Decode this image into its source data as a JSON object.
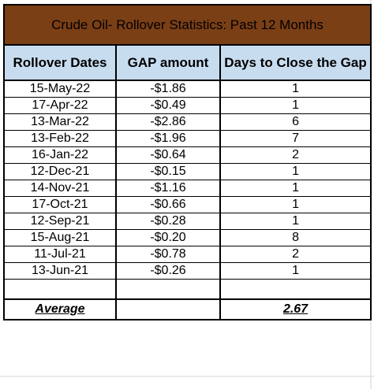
{
  "title": "Crude Oil- Rollover Statistics: Past 12 Months",
  "headers": [
    "Rollover Dates",
    "GAP amount",
    "Days to Close the Gap"
  ],
  "rows": [
    {
      "date": "15-May-22",
      "gap": "-$1.86",
      "days": "1"
    },
    {
      "date": "17-Apr-22",
      "gap": "-$0.49",
      "days": "1"
    },
    {
      "date": "13-Mar-22",
      "gap": "-$2.86",
      "days": "6"
    },
    {
      "date": "13-Feb-22",
      "gap": "-$1.96",
      "days": "7"
    },
    {
      "date": "16-Jan-22",
      "gap": "-$0.64",
      "days": "2"
    },
    {
      "date": "12-Dec-21",
      "gap": "-$0.15",
      "days": "1"
    },
    {
      "date": "14-Nov-21",
      "gap": "-$1.16",
      "days": "1"
    },
    {
      "date": "17-Oct-21",
      "gap": "-$0.66",
      "days": "1"
    },
    {
      "date": "12-Sep-21",
      "gap": "-$0.28",
      "days": "1"
    },
    {
      "date": "15-Aug-21",
      "gap": "-$0.20",
      "days": "8"
    },
    {
      "date": "11-Jul-21",
      "gap": "-$0.78",
      "days": "2"
    },
    {
      "date": "13-Jun-21",
      "gap": "-$0.26",
      "days": "1"
    }
  ],
  "average": {
    "label": "Average",
    "value": "2.67"
  },
  "colors": {
    "title_bg": "#7b3f16",
    "header_bg": "#c8dcf0",
    "grid": "#d4d4d4"
  }
}
